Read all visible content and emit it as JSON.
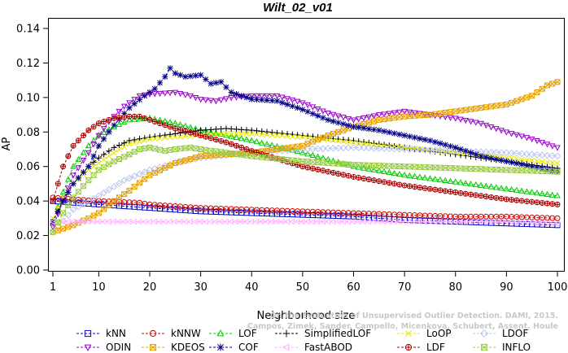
{
  "chart_data": {
    "type": "line",
    "title": "Wilt_02_v01",
    "xlabel": "Neighborhood size",
    "ylabel": "AP",
    "xlim": [
      1,
      100
    ],
    "ylim": [
      0.0,
      0.14
    ],
    "xticks": [
      1,
      10,
      20,
      30,
      40,
      50,
      60,
      70,
      80,
      90,
      100
    ],
    "yticks": [
      0.0,
      0.02,
      0.04,
      0.06,
      0.08,
      0.1,
      0.12,
      0.14
    ],
    "xtick_labels": [
      "1",
      "10",
      "20",
      "30",
      "40",
      "50",
      "60",
      "70",
      "80",
      "90",
      "100"
    ],
    "ytick_labels": [
      "0.00",
      "0.02",
      "0.04",
      "0.06",
      "0.08",
      "0.10",
      "0.12",
      "0.14"
    ],
    "grid": false,
    "legend_position": "bottom",
    "watermark": [
      "On the Evaluation of Unsupervised Outlier Detection. DAMI, 2015.",
      "Campos, Zimek, Sander, Campello, Micenkova, Schubert, Assent, Houle"
    ],
    "series": [
      {
        "name": "kNN",
        "color": "#0000cc",
        "marker": "square",
        "points": [
          [
            1,
            0.04
          ],
          [
            5,
            0.039
          ],
          [
            10,
            0.038
          ],
          [
            20,
            0.036
          ],
          [
            30,
            0.034
          ],
          [
            40,
            0.033
          ],
          [
            50,
            0.032
          ],
          [
            60,
            0.031
          ],
          [
            70,
            0.029
          ],
          [
            80,
            0.028
          ],
          [
            90,
            0.027
          ],
          [
            100,
            0.026
          ]
        ]
      },
      {
        "name": "kNNW",
        "color": "#cc0000",
        "marker": "circle",
        "points": [
          [
            1,
            0.042
          ],
          [
            5,
            0.041
          ],
          [
            10,
            0.04
          ],
          [
            18,
            0.039
          ],
          [
            20,
            0.038
          ],
          [
            30,
            0.036
          ],
          [
            40,
            0.035
          ],
          [
            50,
            0.034
          ],
          [
            60,
            0.033
          ],
          [
            70,
            0.032
          ],
          [
            80,
            0.031
          ],
          [
            90,
            0.031
          ],
          [
            100,
            0.03
          ]
        ]
      },
      {
        "name": "LOF",
        "color": "#00cc00",
        "marker": "triangle-up",
        "points": [
          [
            1,
            0.028
          ],
          [
            3,
            0.045
          ],
          [
            5,
            0.06
          ],
          [
            8,
            0.072
          ],
          [
            10,
            0.078
          ],
          [
            13,
            0.083
          ],
          [
            16,
            0.087
          ],
          [
            20,
            0.088
          ],
          [
            25,
            0.085
          ],
          [
            30,
            0.081
          ],
          [
            40,
            0.075
          ],
          [
            50,
            0.068
          ],
          [
            60,
            0.06
          ],
          [
            70,
            0.055
          ],
          [
            80,
            0.051
          ],
          [
            90,
            0.047
          ],
          [
            100,
            0.043
          ]
        ]
      },
      {
        "name": "SimplifiedLOF",
        "color": "#000000",
        "marker": "plus",
        "points": [
          [
            1,
            0.028
          ],
          [
            3,
            0.04
          ],
          [
            5,
            0.05
          ],
          [
            8,
            0.06
          ],
          [
            10,
            0.065
          ],
          [
            13,
            0.071
          ],
          [
            16,
            0.075
          ],
          [
            20,
            0.077
          ],
          [
            25,
            0.079
          ],
          [
            30,
            0.081
          ],
          [
            35,
            0.082
          ],
          [
            40,
            0.081
          ],
          [
            50,
            0.078
          ],
          [
            60,
            0.075
          ],
          [
            70,
            0.071
          ],
          [
            80,
            0.067
          ],
          [
            90,
            0.063
          ],
          [
            100,
            0.059
          ]
        ]
      },
      {
        "name": "LoOP",
        "color": "#e8e800",
        "marker": "x",
        "points": [
          [
            1,
            0.03
          ],
          [
            3,
            0.042
          ],
          [
            5,
            0.05
          ],
          [
            8,
            0.058
          ],
          [
            10,
            0.062
          ],
          [
            13,
            0.068
          ],
          [
            16,
            0.073
          ],
          [
            20,
            0.076
          ],
          [
            25,
            0.077
          ],
          [
            30,
            0.078
          ],
          [
            35,
            0.079
          ],
          [
            40,
            0.079
          ],
          [
            50,
            0.077
          ],
          [
            60,
            0.074
          ],
          [
            70,
            0.071
          ],
          [
            80,
            0.068
          ],
          [
            90,
            0.065
          ],
          [
            100,
            0.062
          ]
        ]
      },
      {
        "name": "LDOF",
        "color": "#b8c4f0",
        "marker": "diamond",
        "points": [
          [
            1,
            0.022
          ],
          [
            5,
            0.035
          ],
          [
            10,
            0.043
          ],
          [
            15,
            0.052
          ],
          [
            20,
            0.058
          ],
          [
            25,
            0.062
          ],
          [
            30,
            0.065
          ],
          [
            40,
            0.068
          ],
          [
            50,
            0.07
          ],
          [
            60,
            0.071
          ],
          [
            70,
            0.07
          ],
          [
            80,
            0.069
          ],
          [
            90,
            0.068
          ],
          [
            100,
            0.066
          ]
        ]
      },
      {
        "name": "ODIN",
        "color": "#9900cc",
        "marker": "triangle-down",
        "points": [
          [
            1,
            0.025
          ],
          [
            3,
            0.04
          ],
          [
            5,
            0.055
          ],
          [
            8,
            0.068
          ],
          [
            10,
            0.078
          ],
          [
            12,
            0.086
          ],
          [
            15,
            0.095
          ],
          [
            18,
            0.101
          ],
          [
            20,
            0.102
          ],
          [
            25,
            0.103
          ],
          [
            28,
            0.101
          ],
          [
            30,
            0.099
          ],
          [
            33,
            0.098
          ],
          [
            36,
            0.1
          ],
          [
            40,
            0.101
          ],
          [
            45,
            0.101
          ],
          [
            50,
            0.097
          ],
          [
            55,
            0.091
          ],
          [
            60,
            0.087
          ],
          [
            65,
            0.09
          ],
          [
            70,
            0.092
          ],
          [
            75,
            0.09
          ],
          [
            80,
            0.088
          ],
          [
            85,
            0.085
          ],
          [
            90,
            0.08
          ],
          [
            95,
            0.076
          ],
          [
            100,
            0.071
          ]
        ]
      },
      {
        "name": "KDEOS",
        "color": "#e8a000",
        "marker": "square-x",
        "points": [
          [
            1,
            0.022
          ],
          [
            5,
            0.026
          ],
          [
            8,
            0.03
          ],
          [
            10,
            0.033
          ],
          [
            13,
            0.04
          ],
          [
            16,
            0.046
          ],
          [
            20,
            0.055
          ],
          [
            25,
            0.062
          ],
          [
            30,
            0.066
          ],
          [
            35,
            0.067
          ],
          [
            40,
            0.068
          ],
          [
            45,
            0.07
          ],
          [
            50,
            0.072
          ],
          [
            55,
            0.078
          ],
          [
            60,
            0.083
          ],
          [
            65,
            0.087
          ],
          [
            70,
            0.089
          ],
          [
            75,
            0.09
          ],
          [
            80,
            0.092
          ],
          [
            85,
            0.094
          ],
          [
            90,
            0.096
          ],
          [
            95,
            0.101
          ],
          [
            98,
            0.107
          ],
          [
            100,
            0.109
          ]
        ]
      },
      {
        "name": "COF",
        "color": "#000088",
        "marker": "asterisk",
        "points": [
          [
            1,
            0.028
          ],
          [
            3,
            0.04
          ],
          [
            5,
            0.05
          ],
          [
            8,
            0.06
          ],
          [
            10,
            0.072
          ],
          [
            13,
            0.084
          ],
          [
            16,
            0.094
          ],
          [
            19,
            0.101
          ],
          [
            21,
            0.105
          ],
          [
            23,
            0.112
          ],
          [
            24,
            0.117
          ],
          [
            25,
            0.114
          ],
          [
            27,
            0.112
          ],
          [
            30,
            0.113
          ],
          [
            32,
            0.108
          ],
          [
            34,
            0.109
          ],
          [
            36,
            0.103
          ],
          [
            40,
            0.099
          ],
          [
            45,
            0.098
          ],
          [
            50,
            0.093
          ],
          [
            55,
            0.087
          ],
          [
            60,
            0.083
          ],
          [
            65,
            0.081
          ],
          [
            70,
            0.078
          ],
          [
            75,
            0.075
          ],
          [
            80,
            0.071
          ],
          [
            85,
            0.066
          ],
          [
            90,
            0.063
          ],
          [
            95,
            0.06
          ],
          [
            100,
            0.057
          ]
        ]
      },
      {
        "name": "FastABOD",
        "color": "#ffb0ff",
        "marker": "triangle-left",
        "points": [
          [
            1,
            0.028
          ],
          [
            10,
            0.028
          ],
          [
            20,
            0.028
          ],
          [
            30,
            0.028
          ],
          [
            40,
            0.028
          ],
          [
            50,
            0.028
          ],
          [
            60,
            0.028
          ],
          [
            70,
            0.028
          ],
          [
            80,
            0.028
          ],
          [
            90,
            0.028
          ],
          [
            100,
            0.027
          ]
        ]
      },
      {
        "name": "LDF",
        "color": "#aa0000",
        "marker": "circle-plus",
        "points": [
          [
            1,
            0.04
          ],
          [
            3,
            0.06
          ],
          [
            5,
            0.072
          ],
          [
            8,
            0.081
          ],
          [
            10,
            0.085
          ],
          [
            13,
            0.088
          ],
          [
            16,
            0.089
          ],
          [
            18,
            0.089
          ],
          [
            20,
            0.087
          ],
          [
            25,
            0.082
          ],
          [
            30,
            0.078
          ],
          [
            35,
            0.074
          ],
          [
            40,
            0.069
          ],
          [
            50,
            0.06
          ],
          [
            60,
            0.054
          ],
          [
            70,
            0.049
          ],
          [
            80,
            0.045
          ],
          [
            90,
            0.041
          ],
          [
            100,
            0.038
          ]
        ]
      },
      {
        "name": "INFLO",
        "color": "#99cc44",
        "marker": "hourglass",
        "points": [
          [
            1,
            0.022
          ],
          [
            3,
            0.033
          ],
          [
            5,
            0.042
          ],
          [
            8,
            0.052
          ],
          [
            10,
            0.058
          ],
          [
            13,
            0.063
          ],
          [
            16,
            0.067
          ],
          [
            18,
            0.07
          ],
          [
            20,
            0.071
          ],
          [
            23,
            0.069
          ],
          [
            25,
            0.07
          ],
          [
            28,
            0.071
          ],
          [
            30,
            0.07
          ],
          [
            35,
            0.068
          ],
          [
            40,
            0.066
          ],
          [
            50,
            0.063
          ],
          [
            60,
            0.061
          ],
          [
            70,
            0.06
          ],
          [
            80,
            0.059
          ],
          [
            90,
            0.058
          ],
          [
            100,
            0.057
          ]
        ]
      }
    ]
  }
}
